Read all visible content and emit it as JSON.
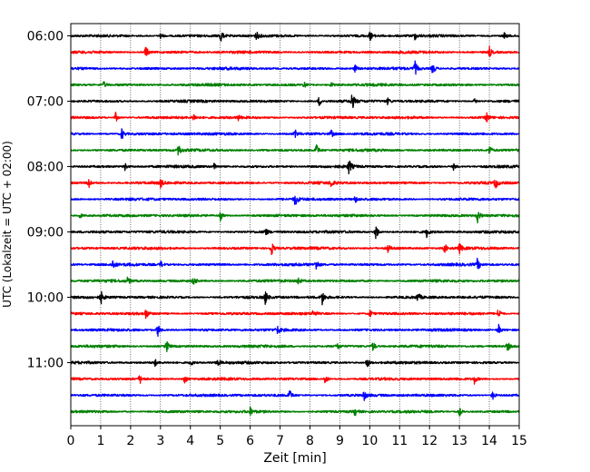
{
  "chart_data": {
    "type": "line",
    "title": "",
    "xlabel": "Zeit  [min]",
    "ylabel": "UTC (Lokalzeit = UTC + 02:00)",
    "xlim": [
      0,
      15
    ],
    "x_ticks": [
      0,
      1,
      2,
      3,
      4,
      5,
      6,
      7,
      8,
      9,
      10,
      11,
      12,
      13,
      14,
      15
    ],
    "x_tick_labels": [
      "0",
      "1",
      "2",
      "3",
      "4",
      "5",
      "6",
      "7",
      "8",
      "9",
      "10",
      "11",
      "12",
      "13",
      "14",
      "15"
    ],
    "y_tick_labels": [
      "06:00",
      "07:00",
      "08:00",
      "09:00",
      "10:00",
      "11:00"
    ],
    "grid_x": true,
    "trace_interval_min": 15,
    "colors": [
      "#000000",
      "#ff0000",
      "#0000ff",
      "#008000"
    ],
    "series": [
      {
        "start": "06:00",
        "color": "#000000",
        "events": [
          [
            5.0,
            1.4
          ],
          [
            3.0,
            0.7
          ],
          [
            6.2,
            0.8
          ],
          [
            10.0,
            0.9
          ],
          [
            11.5,
            0.7
          ],
          [
            14.5,
            0.6
          ]
        ]
      },
      {
        "start": "06:15",
        "color": "#ff0000",
        "events": [
          [
            2.5,
            1.5
          ],
          [
            14.0,
            1.0
          ]
        ]
      },
      {
        "start": "06:30",
        "color": "#0000ff",
        "events": [
          [
            9.5,
            0.7
          ],
          [
            11.5,
            1.6
          ],
          [
            12.1,
            1.3
          ]
        ]
      },
      {
        "start": "06:45",
        "color": "#008000",
        "events": [
          [
            1.1,
            0.6
          ],
          [
            7.8,
            0.6
          ],
          [
            8.7,
            0.6
          ]
        ]
      },
      {
        "start": "07:00",
        "color": "#000000",
        "events": [
          [
            8.3,
            1.0
          ],
          [
            9.4,
            1.8
          ],
          [
            10.6,
            0.6
          ],
          [
            13.5,
            0.6
          ]
        ]
      },
      {
        "start": "07:15",
        "color": "#ff0000",
        "events": [
          [
            1.5,
            0.9
          ],
          [
            4.1,
            0.7
          ],
          [
            5.6,
            0.5
          ],
          [
            13.9,
            1.0
          ]
        ]
      },
      {
        "start": "07:30",
        "color": "#0000ff",
        "events": [
          [
            1.7,
            1.2
          ],
          [
            7.5,
            0.8
          ],
          [
            8.7,
            0.8
          ]
        ]
      },
      {
        "start": "07:45",
        "color": "#008000",
        "events": [
          [
            3.6,
            1.2
          ],
          [
            8.2,
            1.4
          ],
          [
            14.0,
            1.0
          ]
        ]
      },
      {
        "start": "08:00",
        "color": "#000000",
        "events": [
          [
            1.8,
            0.8
          ],
          [
            4.8,
            0.8
          ],
          [
            9.3,
            1.5
          ],
          [
            12.8,
            0.6
          ]
        ]
      },
      {
        "start": "08:15",
        "color": "#ff0000",
        "events": [
          [
            0.6,
            1.2
          ],
          [
            3.0,
            0.7
          ],
          [
            8.7,
            0.8
          ],
          [
            14.2,
            1.2
          ]
        ]
      },
      {
        "start": "08:30",
        "color": "#0000ff",
        "events": [
          [
            7.5,
            1.4
          ],
          [
            9.5,
            0.7
          ]
        ]
      },
      {
        "start": "08:45",
        "color": "#008000",
        "events": [
          [
            0.3,
            0.6
          ],
          [
            5.0,
            0.9
          ],
          [
            13.6,
            1.4
          ]
        ]
      },
      {
        "start": "09:00",
        "color": "#000000",
        "events": [
          [
            6.5,
            0.8
          ],
          [
            10.2,
            1.7
          ],
          [
            11.9,
            1.0
          ]
        ]
      },
      {
        "start": "09:15",
        "color": "#ff0000",
        "events": [
          [
            6.7,
            1.6
          ],
          [
            10.6,
            0.9
          ],
          [
            12.5,
            1.0
          ],
          [
            13.0,
            1.0
          ]
        ]
      },
      {
        "start": "09:30",
        "color": "#0000ff",
        "events": [
          [
            1.4,
            0.9
          ],
          [
            3.0,
            0.7
          ],
          [
            8.2,
            1.1
          ],
          [
            13.6,
            1.2
          ]
        ]
      },
      {
        "start": "09:45",
        "color": "#008000",
        "events": [
          [
            1.9,
            0.6
          ],
          [
            4.1,
            0.9
          ],
          [
            7.6,
            0.7
          ]
        ]
      },
      {
        "start": "10:00",
        "color": "#000000",
        "events": [
          [
            1.0,
            1.3
          ],
          [
            6.5,
            1.4
          ],
          [
            8.4,
            1.5
          ],
          [
            11.6,
            1.0
          ]
        ]
      },
      {
        "start": "10:15",
        "color": "#ff0000",
        "events": [
          [
            2.5,
            1.0
          ],
          [
            8.1,
            0.7
          ],
          [
            10.0,
            0.8
          ],
          [
            14.3,
            1.2
          ]
        ]
      },
      {
        "start": "10:30",
        "color": "#0000ff",
        "events": [
          [
            2.9,
            1.5
          ],
          [
            6.9,
            0.8
          ],
          [
            14.3,
            1.2
          ]
        ]
      },
      {
        "start": "10:45",
        "color": "#008000",
        "events": [
          [
            3.2,
            1.2
          ],
          [
            8.9,
            0.8
          ],
          [
            10.1,
            1.0
          ],
          [
            14.6,
            1.0
          ]
        ]
      },
      {
        "start": "11:00",
        "color": "#000000",
        "events": [
          [
            2.8,
            0.8
          ],
          [
            4.0,
            0.8
          ],
          [
            4.9,
            0.8
          ],
          [
            9.9,
            1.2
          ]
        ]
      },
      {
        "start": "11:15",
        "color": "#ff0000",
        "events": [
          [
            2.3,
            1.0
          ],
          [
            3.8,
            1.0
          ],
          [
            8.5,
            1.0
          ],
          [
            13.5,
            0.8
          ]
        ]
      },
      {
        "start": "11:30",
        "color": "#0000ff",
        "events": [
          [
            7.3,
            1.3
          ],
          [
            9.8,
            1.0
          ],
          [
            14.1,
            1.0
          ]
        ]
      },
      {
        "start": "11:45",
        "color": "#008000",
        "events": [
          [
            6.0,
            0.7
          ],
          [
            9.5,
            0.8
          ],
          [
            13.0,
            0.9
          ]
        ]
      }
    ]
  }
}
